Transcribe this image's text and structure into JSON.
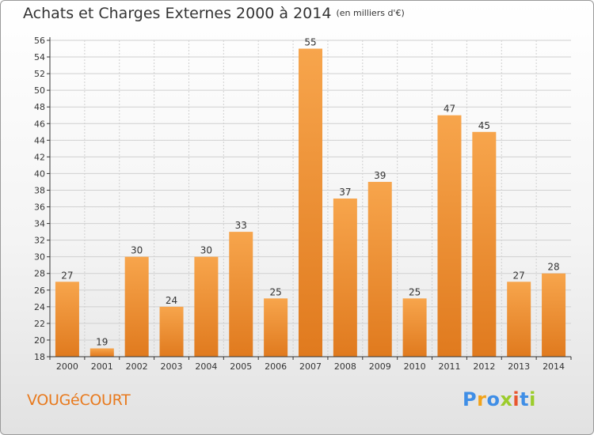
{
  "title": "Achats et Charges Externes 2000 à 2014",
  "unit_label": "(en milliers d'€)",
  "commune": "VOUGéCOURT",
  "logo": {
    "letters": [
      {
        "ch": "P",
        "color": "#3f8ee6"
      },
      {
        "ch": "r",
        "color": "#f2a31b"
      },
      {
        "ch": "o",
        "color": "#3f8ee6"
      },
      {
        "ch": "x",
        "color": "#9ccc2c"
      },
      {
        "ch": "i",
        "color": "#e8562e"
      },
      {
        "ch": "t",
        "color": "#3f8ee6"
      },
      {
        "ch": "i",
        "color": "#9ccc2c"
      }
    ]
  },
  "colors": {
    "bar_light": "#f7a54c",
    "bar_dark": "#e07a1e",
    "grid": "#d0d0d0",
    "axis": "#333333",
    "text": "#333333"
  },
  "chart_data": {
    "type": "bar",
    "title": "Achats et Charges Externes 2000 à 2014",
    "subtitle": "(en milliers d'€)",
    "categories": [
      "2000",
      "2001",
      "2002",
      "2003",
      "2004",
      "2005",
      "2006",
      "2007",
      "2008",
      "2009",
      "2010",
      "2011",
      "2012",
      "2013",
      "2014"
    ],
    "values": [
      27,
      19,
      30,
      24,
      30,
      33,
      25,
      55,
      37,
      39,
      25,
      47,
      45,
      27,
      28
    ],
    "ylim": [
      18,
      56
    ],
    "yticks": [
      18,
      20,
      22,
      24,
      26,
      28,
      30,
      32,
      34,
      36,
      38,
      40,
      42,
      44,
      46,
      48,
      50,
      52,
      54,
      56
    ],
    "grid": true,
    "xlabel": "",
    "ylabel": ""
  }
}
